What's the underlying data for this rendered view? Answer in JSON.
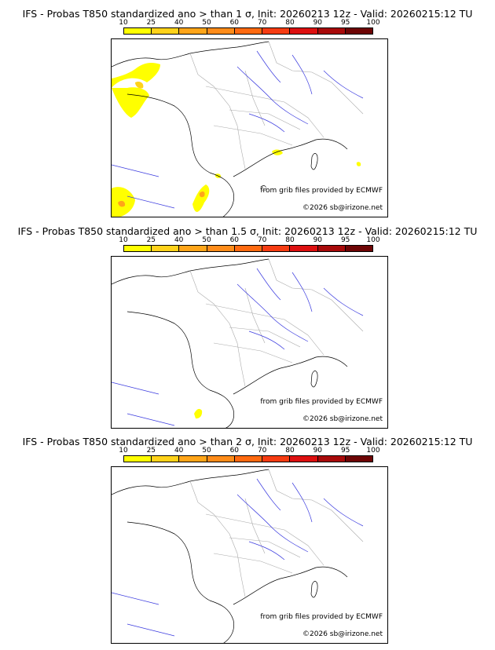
{
  "panels": [
    {
      "title": "IFS - Probas T850  standardized ano > than 1 σ, Init: 20260213 12z - Valid: 20260215:12 TU"
    },
    {
      "title": "IFS - Probas T850  standardized ano > than 1.5 σ, Init: 20260213 12z - Valid: 20260215:12 TU"
    },
    {
      "title": "IFS - Probas T850  standardized ano > than 2 σ, Init: 20260213 12z - Valid: 20260215:12 TU"
    }
  ],
  "colorbar": {
    "ticks": [
      "10",
      "25",
      "40",
      "50",
      "60",
      "70",
      "80",
      "90",
      "95",
      "100"
    ],
    "colors": [
      "#ffff00",
      "#ffd21a",
      "#ffa519",
      "#ff8c1a",
      "#ff6a10",
      "#f63c12",
      "#dd1010",
      "#a80a0a",
      "#6e0505"
    ]
  },
  "credits": {
    "source": "from grib files provided by ECMWF",
    "copyright": "©2026 sb@irizone.net"
  },
  "map_colors": {
    "coast": "#000000",
    "borders": "#aaaaaa",
    "rivers": "#3a3adf"
  }
}
